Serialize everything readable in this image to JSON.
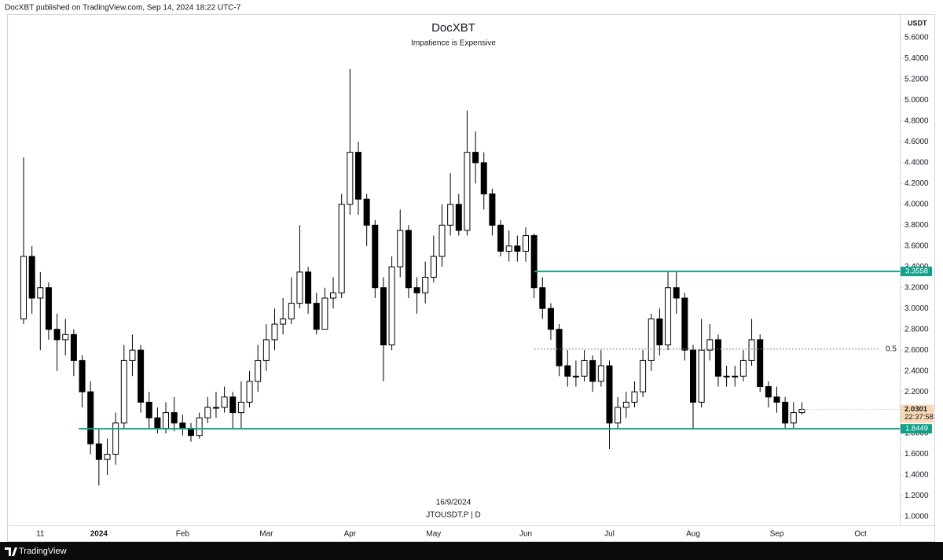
{
  "header": "DocXBT published on TradingView.com, Sep 14, 2024 18:22 UTC-7",
  "footer": "TradingView",
  "chart_data": {
    "type": "candlestick",
    "title": "DocXBT",
    "subtitle": "Impatience is Expensive",
    "currency": "USDT",
    "date_note": "16/9/2024",
    "symbol": "JTOUSDT.P | D",
    "up_color": "#ffffff",
    "down_color": "#000000",
    "grid": false,
    "categories": [
      null,
      null,
      "11",
      null,
      null,
      null,
      null,
      null,
      null,
      "2024",
      null,
      null,
      null,
      null,
      null,
      null,
      null,
      null,
      null,
      "Feb",
      null,
      null,
      null,
      null,
      null,
      null,
      null,
      null,
      null,
      "Mar",
      null,
      null,
      null,
      null,
      null,
      null,
      null,
      null,
      null,
      "Apr",
      null,
      null,
      null,
      null,
      null,
      null,
      null,
      null,
      null,
      "May",
      null,
      null,
      null,
      null,
      null,
      null,
      null,
      null,
      null,
      null,
      "Jun",
      null,
      null,
      null,
      null,
      null,
      null,
      null,
      null,
      null,
      "Jul",
      null,
      null,
      null,
      null,
      null,
      null,
      null,
      null,
      null,
      "Aug",
      null,
      null,
      null,
      null,
      null,
      null,
      null,
      null,
      null,
      "Sep",
      null,
      null,
      null,
      null,
      null,
      null,
      null,
      null,
      null,
      "Oct",
      null,
      null,
      null
    ],
    "open": [
      2.9,
      3.5,
      3.1,
      3.2,
      2.8,
      2.7,
      2.75,
      2.5,
      2.2,
      1.7,
      1.55,
      1.6,
      1.9,
      2.5,
      2.6,
      2.1,
      1.95,
      1.85,
      2.0,
      1.9,
      1.85,
      1.78,
      1.95,
      2.05,
      2.05,
      2.15,
      2.0,
      2.1,
      2.3,
      2.5,
      2.7,
      2.85,
      2.9,
      3.05,
      3.35,
      3.05,
      2.8,
      3.1,
      3.15,
      4.0,
      4.5,
      4.05,
      3.8,
      3.2,
      2.65,
      3.4,
      3.75,
      3.2,
      3.15,
      3.3,
      3.5,
      3.8,
      4.0,
      3.75,
      4.5,
      4.4,
      4.1,
      3.8,
      3.55,
      3.6,
      3.55,
      3.7,
      3.2,
      3.0,
      2.8,
      2.45,
      2.35,
      2.35,
      2.5,
      2.3,
      2.45,
      1.9,
      2.05,
      2.1,
      2.2,
      2.5,
      2.9,
      2.65,
      3.2,
      3.1,
      2.6,
      2.1,
      2.6,
      2.7,
      2.35,
      2.35,
      2.35,
      2.5,
      2.7,
      2.25,
      2.15,
      2.1,
      1.9,
      2.0,
      null,
      null,
      null,
      null,
      null,
      null,
      null,
      null,
      null,
      null
    ],
    "high": [
      4.45,
      3.6,
      3.35,
      3.25,
      2.95,
      2.9,
      2.8,
      2.55,
      2.3,
      1.85,
      1.75,
      2.0,
      2.65,
      2.75,
      2.65,
      2.2,
      2.05,
      2.1,
      2.15,
      1.98,
      1.9,
      2.0,
      2.15,
      2.2,
      2.25,
      2.2,
      2.3,
      2.4,
      2.65,
      2.85,
      3.0,
      3.1,
      3.3,
      3.8,
      3.4,
      3.15,
      3.2,
      3.3,
      4.1,
      5.3,
      4.6,
      4.1,
      3.85,
      3.3,
      3.5,
      3.95,
      3.8,
      3.3,
      3.45,
      3.7,
      4.0,
      4.3,
      4.1,
      4.9,
      4.7,
      4.5,
      4.15,
      3.85,
      3.75,
      3.7,
      3.78,
      3.72,
      3.3,
      3.05,
      2.85,
      2.6,
      2.5,
      2.6,
      2.55,
      2.6,
      2.5,
      2.15,
      2.2,
      2.3,
      2.6,
      2.95,
      3.0,
      3.35,
      3.35,
      3.15,
      2.65,
      2.9,
      2.85,
      2.75,
      2.45,
      2.45,
      2.6,
      2.9,
      2.75,
      2.3,
      2.25,
      2.15,
      2.1,
      2.1,
      null,
      null,
      null,
      null,
      null,
      null,
      null,
      null,
      null,
      null
    ],
    "low": [
      2.85,
      2.95,
      2.6,
      2.7,
      2.4,
      2.55,
      2.35,
      2.05,
      1.6,
      1.3,
      1.4,
      1.5,
      1.85,
      2.35,
      2.0,
      1.85,
      1.8,
      1.8,
      1.82,
      1.78,
      1.72,
      1.75,
      1.9,
      1.95,
      2.0,
      1.85,
      1.85,
      2.05,
      2.2,
      2.4,
      2.6,
      2.75,
      2.85,
      3.0,
      2.95,
      2.75,
      2.8,
      3.0,
      3.1,
      3.9,
      3.9,
      3.6,
      3.1,
      2.3,
      2.6,
      3.3,
      3.1,
      2.95,
      3.05,
      3.25,
      3.4,
      3.7,
      3.7,
      3.7,
      4.2,
      3.95,
      3.7,
      3.5,
      3.45,
      3.45,
      3.45,
      3.1,
      2.9,
      2.7,
      2.35,
      2.25,
      2.25,
      2.3,
      2.2,
      2.25,
      1.65,
      1.85,
      1.95,
      2.05,
      2.15,
      2.4,
      2.55,
      2.6,
      2.95,
      2.5,
      1.85,
      2.05,
      2.5,
      2.25,
      2.25,
      2.25,
      2.3,
      2.45,
      2.2,
      2.05,
      2.0,
      1.85,
      1.85,
      1.98,
      null,
      null,
      null,
      null,
      null,
      null,
      null,
      null,
      null,
      null
    ],
    "close": [
      3.5,
      3.1,
      3.2,
      2.8,
      2.7,
      2.75,
      2.5,
      2.2,
      1.7,
      1.55,
      1.6,
      1.9,
      2.5,
      2.6,
      2.1,
      1.95,
      1.85,
      2.0,
      1.9,
      1.85,
      1.78,
      1.95,
      2.05,
      2.05,
      2.15,
      2.0,
      2.1,
      2.3,
      2.5,
      2.7,
      2.85,
      2.9,
      3.05,
      3.35,
      3.05,
      2.8,
      3.1,
      3.15,
      4.0,
      4.5,
      4.05,
      3.8,
      3.2,
      2.65,
      3.4,
      3.75,
      3.2,
      3.15,
      3.3,
      3.5,
      3.8,
      4.0,
      3.75,
      4.5,
      4.4,
      4.1,
      3.8,
      3.55,
      3.6,
      3.55,
      3.7,
      3.2,
      3.0,
      2.8,
      2.45,
      2.35,
      2.35,
      2.5,
      2.3,
      2.45,
      1.9,
      2.05,
      2.1,
      2.2,
      2.5,
      2.9,
      2.65,
      3.2,
      3.1,
      2.6,
      2.1,
      2.6,
      2.7,
      2.35,
      2.35,
      2.35,
      2.5,
      2.7,
      2.25,
      2.15,
      2.1,
      1.9,
      2.0,
      2.03,
      null,
      null,
      null,
      null,
      null,
      null,
      null,
      null,
      null,
      null
    ],
    "ylim": [
      1.0,
      5.6
    ],
    "yticks": [
      {
        "value": 1.0,
        "label": "1.0000"
      },
      {
        "value": 1.2,
        "label": "1.2000"
      },
      {
        "value": 1.4,
        "label": "1.4000"
      },
      {
        "value": 1.6,
        "label": "1.6000"
      },
      {
        "value": 1.8,
        "label": "1.8000"
      },
      {
        "value": 2.0,
        "label": "2.0000"
      },
      {
        "value": 2.2,
        "label": "2.2000"
      },
      {
        "value": 2.4,
        "label": "2.4000"
      },
      {
        "value": 2.6,
        "label": "2.6000"
      },
      {
        "value": 2.8,
        "label": "2.8000"
      },
      {
        "value": 3.0,
        "label": "3.0000"
      },
      {
        "value": 3.2,
        "label": "3.2000"
      },
      {
        "value": 3.4,
        "label": "3.4000"
      },
      {
        "value": 3.6,
        "label": "3.6000"
      },
      {
        "value": 3.8,
        "label": "3.8000"
      },
      {
        "value": 4.0,
        "label": "4.0000"
      },
      {
        "value": 4.2,
        "label": "4.2000"
      },
      {
        "value": 4.4,
        "label": "4.4000"
      },
      {
        "value": 4.6,
        "label": "4.6000"
      },
      {
        "value": 4.8,
        "label": "4.8000"
      },
      {
        "value": 5.0,
        "label": "5.0000"
      },
      {
        "value": 5.2,
        "label": "5.2000"
      },
      {
        "value": 5.4,
        "label": "5.4000"
      },
      {
        "value": 5.6,
        "label": "5.6000"
      }
    ],
    "levels": [
      {
        "value": 3.3558,
        "color": "#12a08a"
      },
      {
        "value": 1.8449,
        "color": "#12a08a"
      }
    ],
    "fib": {
      "value": 2.61,
      "label": "0.5",
      "color": "#888888"
    },
    "last_price": {
      "value": 2.0301,
      "countdown": "22:37:58",
      "color": "#f7d9b4"
    }
  }
}
